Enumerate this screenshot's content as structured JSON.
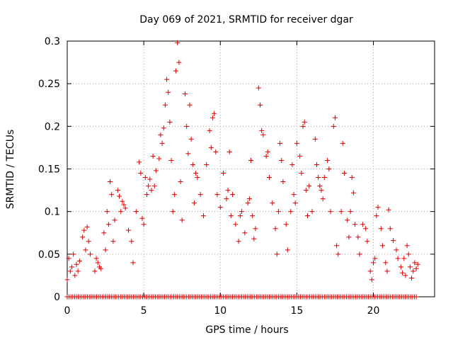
{
  "chart_data": {
    "type": "scatter",
    "title": "Day 069 of 2021, SRMTID for receiver dgar",
    "xlabel": "GPS time / hours",
    "ylabel": "SRMTID / TECUs",
    "xlim": [
      0,
      24
    ],
    "ylim": [
      0,
      0.3
    ],
    "x_ticks": [
      0,
      5,
      10,
      15,
      20
    ],
    "x_tick_labels": [
      "0",
      "5",
      "10",
      "15",
      "20"
    ],
    "y_ticks": [
      0,
      0.05,
      0.1,
      0.15,
      0.2,
      0.25,
      0.3
    ],
    "y_tick_labels": [
      "0",
      "0.05",
      "0.1",
      "0.15",
      "0.2",
      "0.25",
      "0.3"
    ],
    "grid": true,
    "marker": "+",
    "series_color": "#dd0000",
    "series": [
      {
        "name": "SRMTID",
        "points": [
          [
            0.0,
            0.02
          ],
          [
            0.1,
            0.045
          ],
          [
            0.2,
            0.03
          ],
          [
            0.3,
            0.035
          ],
          [
            0.4,
            0.05
          ],
          [
            0.5,
            0.025
          ],
          [
            0.6,
            0.038
          ],
          [
            0.7,
            0.03
          ],
          [
            0.8,
            0.042
          ],
          [
            1.0,
            0.07
          ],
          [
            1.1,
            0.078
          ],
          [
            1.2,
            0.055
          ],
          [
            1.3,
            0.082
          ],
          [
            1.4,
            0.065
          ],
          [
            1.5,
            0.05
          ],
          [
            1.8,
            0.03
          ],
          [
            1.9,
            0.045
          ],
          [
            2.0,
            0.04
          ],
          [
            2.1,
            0.035
          ],
          [
            2.2,
            0.033
          ],
          [
            2.4,
            0.075
          ],
          [
            2.5,
            0.055
          ],
          [
            2.6,
            0.1
          ],
          [
            2.7,
            0.085
          ],
          [
            2.8,
            0.135
          ],
          [
            2.9,
            0.12
          ],
          [
            3.0,
            0.065
          ],
          [
            3.1,
            0.09
          ],
          [
            3.3,
            0.125
          ],
          [
            3.4,
            0.118
          ],
          [
            3.5,
            0.1
          ],
          [
            3.6,
            0.112
          ],
          [
            3.7,
            0.108
          ],
          [
            3.8,
            0.104
          ],
          [
            4.0,
            0.078
          ],
          [
            4.2,
            0.065
          ],
          [
            4.3,
            0.04
          ],
          [
            4.5,
            0.1
          ],
          [
            4.7,
            0.158
          ],
          [
            4.8,
            0.145
          ],
          [
            4.9,
            0.092
          ],
          [
            5.0,
            0.085
          ],
          [
            5.1,
            0.14
          ],
          [
            5.2,
            0.12
          ],
          [
            5.3,
            0.13
          ],
          [
            5.4,
            0.138
          ],
          [
            5.5,
            0.125
          ],
          [
            5.6,
            0.165
          ],
          [
            5.7,
            0.13
          ],
          [
            5.8,
            0.148
          ],
          [
            6.0,
            0.162
          ],
          [
            6.1,
            0.19
          ],
          [
            6.2,
            0.18
          ],
          [
            6.3,
            0.198
          ],
          [
            6.4,
            0.225
          ],
          [
            6.5,
            0.255
          ],
          [
            6.6,
            0.24
          ],
          [
            6.7,
            0.205
          ],
          [
            6.8,
            0.16
          ],
          [
            6.9,
            0.1
          ],
          [
            7.0,
            0.12
          ],
          [
            7.1,
            0.265
          ],
          [
            7.2,
            0.298
          ],
          [
            7.3,
            0.275
          ],
          [
            7.4,
            0.135
          ],
          [
            7.5,
            0.09
          ],
          [
            7.7,
            0.238
          ],
          [
            7.8,
            0.2
          ],
          [
            7.9,
            0.168
          ],
          [
            8.0,
            0.225
          ],
          [
            8.1,
            0.185
          ],
          [
            8.2,
            0.155
          ],
          [
            8.3,
            0.11
          ],
          [
            8.4,
            0.145
          ],
          [
            8.5,
            0.14
          ],
          [
            8.7,
            0.12
          ],
          [
            8.9,
            0.095
          ],
          [
            9.1,
            0.155
          ],
          [
            9.3,
            0.195
          ],
          [
            9.4,
            0.175
          ],
          [
            9.5,
            0.21
          ],
          [
            9.6,
            0.215
          ],
          [
            9.7,
            0.17
          ],
          [
            9.8,
            0.12
          ],
          [
            10.0,
            0.105
          ],
          [
            10.2,
            0.145
          ],
          [
            10.4,
            0.115
          ],
          [
            10.5,
            0.125
          ],
          [
            10.6,
            0.17
          ],
          [
            10.7,
            0.095
          ],
          [
            10.8,
            0.12
          ],
          [
            11.0,
            0.085
          ],
          [
            11.2,
            0.065
          ],
          [
            11.3,
            0.095
          ],
          [
            11.4,
            0.1
          ],
          [
            11.6,
            0.075
          ],
          [
            11.8,
            0.11
          ],
          [
            11.9,
            0.115
          ],
          [
            12.0,
            0.16
          ],
          [
            12.1,
            0.095
          ],
          [
            12.2,
            0.068
          ],
          [
            12.3,
            0.08
          ],
          [
            12.5,
            0.245
          ],
          [
            12.6,
            0.225
          ],
          [
            12.7,
            0.195
          ],
          [
            12.8,
            0.19
          ],
          [
            13.0,
            0.165
          ],
          [
            13.1,
            0.17
          ],
          [
            13.2,
            0.14
          ],
          [
            13.4,
            0.11
          ],
          [
            13.6,
            0.08
          ],
          [
            13.7,
            0.05
          ],
          [
            13.8,
            0.1
          ],
          [
            13.9,
            0.18
          ],
          [
            14.0,
            0.16
          ],
          [
            14.1,
            0.135
          ],
          [
            14.3,
            0.085
          ],
          [
            14.4,
            0.055
          ],
          [
            14.6,
            0.1
          ],
          [
            14.7,
            0.155
          ],
          [
            14.8,
            0.12
          ],
          [
            14.9,
            0.11
          ],
          [
            15.0,
            0.18
          ],
          [
            15.2,
            0.165
          ],
          [
            15.3,
            0.145
          ],
          [
            15.4,
            0.2
          ],
          [
            15.5,
            0.205
          ],
          [
            15.6,
            0.125
          ],
          [
            15.7,
            0.095
          ],
          [
            15.8,
            0.13
          ],
          [
            16.0,
            0.1
          ],
          [
            16.2,
            0.185
          ],
          [
            16.3,
            0.155
          ],
          [
            16.4,
            0.14
          ],
          [
            16.5,
            0.13
          ],
          [
            16.6,
            0.125
          ],
          [
            16.7,
            0.115
          ],
          [
            16.8,
            0.14
          ],
          [
            17.0,
            0.16
          ],
          [
            17.1,
            0.15
          ],
          [
            17.2,
            0.1
          ],
          [
            17.4,
            0.2
          ],
          [
            17.5,
            0.21
          ],
          [
            17.6,
            0.06
          ],
          [
            17.7,
            0.05
          ],
          [
            17.9,
            0.1
          ],
          [
            18.0,
            0.18
          ],
          [
            18.1,
            0.145
          ],
          [
            18.3,
            0.09
          ],
          [
            18.4,
            0.07
          ],
          [
            18.5,
            0.1
          ],
          [
            18.6,
            0.14
          ],
          [
            18.7,
            0.122
          ],
          [
            18.8,
            0.085
          ],
          [
            19.0,
            0.07
          ],
          [
            19.1,
            0.05
          ],
          [
            19.3,
            0.085
          ],
          [
            19.5,
            0.08
          ],
          [
            19.6,
            0.065
          ],
          [
            19.8,
            0.03
          ],
          [
            19.9,
            0.02
          ],
          [
            20.0,
            0.04
          ],
          [
            20.1,
            0.045
          ],
          [
            20.2,
            0.095
          ],
          [
            20.3,
            0.105
          ],
          [
            20.5,
            0.08
          ],
          [
            20.6,
            0.06
          ],
          [
            20.8,
            0.04
          ],
          [
            20.9,
            0.03
          ],
          [
            21.0,
            0.102
          ],
          [
            21.1,
            0.08
          ],
          [
            21.3,
            0.066
          ],
          [
            21.5,
            0.055
          ],
          [
            21.6,
            0.045
          ],
          [
            21.8,
            0.035
          ],
          [
            21.9,
            0.028
          ],
          [
            22.0,
            0.045
          ],
          [
            22.1,
            0.025
          ],
          [
            22.2,
            0.06
          ],
          [
            22.3,
            0.05
          ],
          [
            22.4,
            0.035
          ],
          [
            22.5,
            0.022
          ],
          [
            22.6,
            0.03
          ],
          [
            22.7,
            0.04
          ],
          [
            22.8,
            0.033
          ],
          [
            22.9,
            0.038
          ]
        ]
      },
      {
        "name": "zero",
        "x_start": 0.0,
        "x_end": 22.9,
        "x_step": 0.12,
        "y": 0
      }
    ]
  }
}
